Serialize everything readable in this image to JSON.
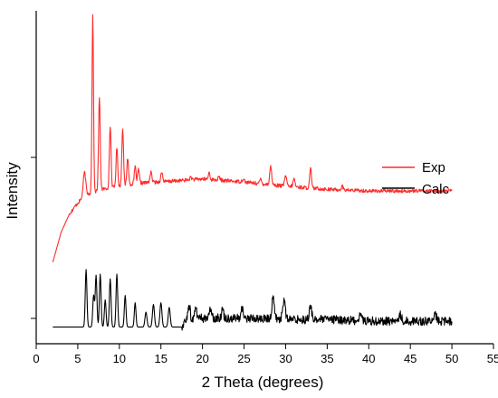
{
  "chart_data": {
    "type": "line",
    "title": "",
    "xlabel": "2 Theta (degrees)",
    "ylabel": "Intensity",
    "xlim": [
      0,
      55
    ],
    "ylim": [
      0,
      100
    ],
    "x_ticks": [
      0,
      5,
      10,
      15,
      20,
      25,
      30,
      35,
      40,
      45,
      50,
      55
    ],
    "y_ticks_labeled": false,
    "grid": false,
    "legend_position": "right",
    "series": [
      {
        "name": "Exp",
        "color": "#ff2a2a",
        "baseline": [
          [
            2,
            24.5
          ],
          [
            3,
            33.5
          ],
          [
            4,
            39
          ],
          [
            5,
            42.3
          ],
          [
            6,
            44.8
          ],
          [
            8,
            46.4
          ],
          [
            10,
            47.3
          ],
          [
            12,
            48.2
          ],
          [
            15,
            48.6
          ],
          [
            20,
            49.5
          ],
          [
            25,
            48.6
          ],
          [
            30,
            47.3
          ],
          [
            35,
            46.4
          ],
          [
            40,
            45.9
          ],
          [
            45,
            45.9
          ],
          [
            50,
            45.9
          ]
        ],
        "peaks": [
          {
            "x": 5.8,
            "y": 51.4,
            "w": 0.15
          },
          {
            "x": 6.8,
            "y": 98.6,
            "w": 0.09
          },
          {
            "x": 7.6,
            "y": 73.9,
            "w": 0.1
          },
          {
            "x": 8.9,
            "y": 65.5,
            "w": 0.1
          },
          {
            "x": 9.7,
            "y": 59,
            "w": 0.1
          },
          {
            "x": 10.4,
            "y": 65,
            "w": 0.1
          },
          {
            "x": 11.0,
            "y": 55.9,
            "w": 0.1
          },
          {
            "x": 11.9,
            "y": 53.2,
            "w": 0.1
          },
          {
            "x": 12.3,
            "y": 52.3,
            "w": 0.1
          },
          {
            "x": 13.8,
            "y": 51.4,
            "w": 0.12
          },
          {
            "x": 15.1,
            "y": 51.4,
            "w": 0.12
          },
          {
            "x": 18.6,
            "y": 50,
            "w": 0.12
          },
          {
            "x": 20.8,
            "y": 51.4,
            "w": 0.1
          },
          {
            "x": 22.0,
            "y": 50,
            "w": 0.12
          },
          {
            "x": 24.9,
            "y": 49.5,
            "w": 0.12
          },
          {
            "x": 27.0,
            "y": 49.5,
            "w": 0.1
          },
          {
            "x": 28.2,
            "y": 53.2,
            "w": 0.12
          },
          {
            "x": 30.0,
            "y": 50.5,
            "w": 0.12
          },
          {
            "x": 31.0,
            "y": 49.5,
            "w": 0.12
          },
          {
            "x": 33.0,
            "y": 52.7,
            "w": 0.1
          },
          {
            "x": 36.8,
            "y": 47.3,
            "w": 0.12
          }
        ]
      },
      {
        "name": "Calc",
        "color": "#000000",
        "baseline": [
          [
            2,
            5
          ],
          [
            5,
            5
          ],
          [
            10,
            5
          ],
          [
            17.5,
            5
          ],
          [
            18,
            7.3
          ],
          [
            20,
            7.7
          ],
          [
            25,
            7.7
          ],
          [
            30,
            7.3
          ],
          [
            35,
            7.3
          ],
          [
            40,
            6.8
          ],
          [
            45,
            6.8
          ],
          [
            50,
            6.8
          ]
        ],
        "peaks": [
          {
            "x": 6.0,
            "y": 22.3,
            "w": 0.1
          },
          {
            "x": 6.9,
            "y": 14.5,
            "w": 0.1
          },
          {
            "x": 7.2,
            "y": 20.5,
            "w": 0.1
          },
          {
            "x": 7.7,
            "y": 20.9,
            "w": 0.1
          },
          {
            "x": 8.3,
            "y": 13.2,
            "w": 0.1
          },
          {
            "x": 8.9,
            "y": 19.5,
            "w": 0.1
          },
          {
            "x": 9.7,
            "y": 20.9,
            "w": 0.1
          },
          {
            "x": 10.7,
            "y": 14.5,
            "w": 0.1
          },
          {
            "x": 11.9,
            "y": 12.3,
            "w": 0.1
          },
          {
            "x": 13.2,
            "y": 9.5,
            "w": 0.12
          },
          {
            "x": 14.1,
            "y": 11.8,
            "w": 0.12
          },
          {
            "x": 15.0,
            "y": 12.3,
            "w": 0.12
          },
          {
            "x": 16.0,
            "y": 10.9,
            "w": 0.12
          },
          {
            "x": 18.4,
            "y": 11.4,
            "w": 0.12
          },
          {
            "x": 19.2,
            "y": 10.9,
            "w": 0.12
          },
          {
            "x": 21.0,
            "y": 10.9,
            "w": 0.12
          },
          {
            "x": 22.4,
            "y": 10.5,
            "w": 0.12
          },
          {
            "x": 24.8,
            "y": 10.9,
            "w": 0.12
          },
          {
            "x": 28.5,
            "y": 14.1,
            "w": 0.15
          },
          {
            "x": 29.8,
            "y": 13.2,
            "w": 0.15
          },
          {
            "x": 33.0,
            "y": 10.9,
            "w": 0.15
          },
          {
            "x": 39.0,
            "y": 9.1,
            "w": 0.15
          },
          {
            "x": 43.8,
            "y": 8.6,
            "w": 0.15
          },
          {
            "x": 48.0,
            "y": 8.6,
            "w": 0.15
          }
        ]
      }
    ]
  }
}
